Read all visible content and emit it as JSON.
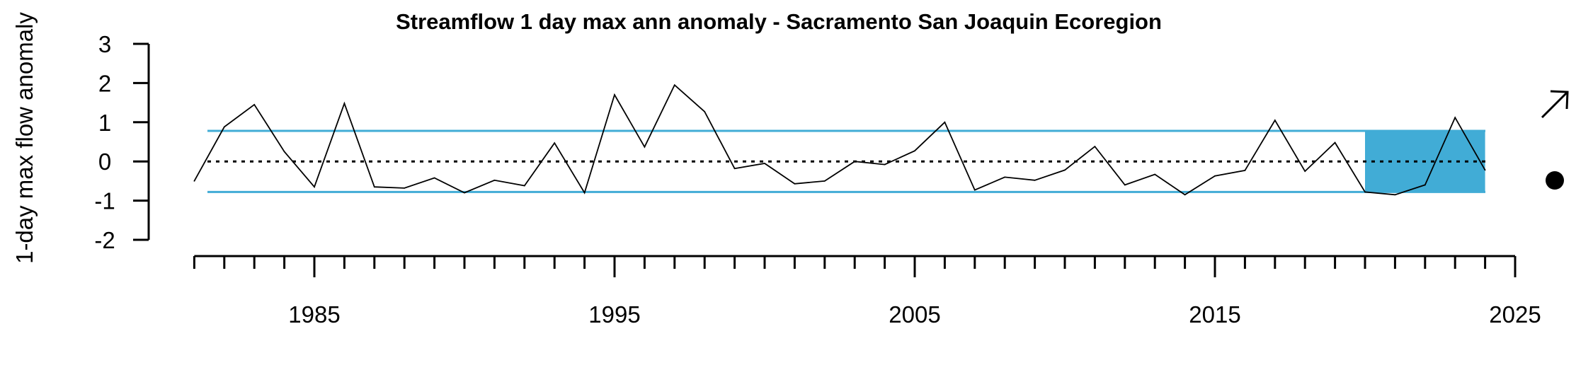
{
  "chart_data": {
    "type": "line",
    "title": "Streamflow 1 day max ann anomaly - Sacramento San Joaquin Ecoregion",
    "xlabel": "",
    "ylabel": "1-day max flow anomaly",
    "xlim": [
      1980,
      2025
    ],
    "ylim": [
      -2,
      3
    ],
    "x_ticks": [
      1985,
      1995,
      2005,
      2015,
      2025
    ],
    "y_ticks": [
      -2,
      -1,
      0,
      1,
      2,
      3
    ],
    "x_minor_tick_step": 1,
    "series": [
      {
        "x": [
          1981,
          1982,
          1983,
          1984,
          1985,
          1986,
          1987,
          1988,
          1989,
          1990,
          1991,
          1992,
          1993,
          1994,
          1995,
          1996,
          1997,
          1998,
          1999,
          2000,
          2001,
          2002,
          2003,
          2004,
          2005,
          2006,
          2007,
          2008,
          2009,
          2010,
          2011,
          2012,
          2013,
          2014,
          2015,
          2016,
          2017,
          2018,
          2019,
          2020,
          2021,
          2022,
          2023,
          2024
        ],
        "values": [
          -0.5,
          0.88,
          1.45,
          0.25,
          -0.65,
          1.48,
          -0.65,
          -0.68,
          -0.42,
          -0.8,
          -0.48,
          -0.62,
          0.47,
          -0.8,
          1.7,
          0.37,
          1.95,
          1.27,
          -0.18,
          -0.05,
          -0.57,
          -0.5,
          0.0,
          -0.08,
          0.27,
          1.0,
          -0.73,
          -0.4,
          -0.48,
          -0.22,
          0.38,
          -0.6,
          -0.33,
          -0.85,
          -0.37,
          -0.23,
          1.05,
          -0.25,
          0.48,
          -0.78,
          -0.85,
          -0.6,
          1.12,
          -0.22
        ],
        "color": "#000000"
      }
    ],
    "reference_lines": {
      "zero": 0,
      "upper": 0.78,
      "lower": -0.78
    },
    "highlight_range": {
      "x": [
        2020,
        2024
      ],
      "y": [
        -0.78,
        0.78
      ],
      "color": "#41acd6"
    },
    "band_color": "#41acd6",
    "trend_symbol": "arrow-up-right-icon",
    "status_symbol": "filled-circle-icon"
  }
}
